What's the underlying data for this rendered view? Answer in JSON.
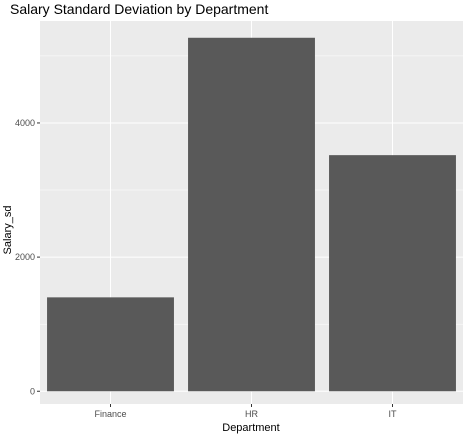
{
  "chart_data": {
    "type": "bar",
    "title": "Salary Standard Deviation by Department",
    "xlabel": "Department",
    "ylabel": "Salary_sd",
    "categories": [
      "Finance",
      "HR",
      "IT"
    ],
    "values": [
      1400,
      5270,
      3520
    ],
    "ylim": [
      -190,
      5520
    ],
    "yticks": [
      0,
      2000,
      4000
    ],
    "ytick_labels": [
      "0",
      "2000",
      "4000"
    ],
    "grid": true,
    "legend": "none",
    "colors": {
      "bar": "#595959",
      "panel": "#ebebeb",
      "grid_major": "#ffffff",
      "tick_text": "#4d4d4d"
    }
  }
}
